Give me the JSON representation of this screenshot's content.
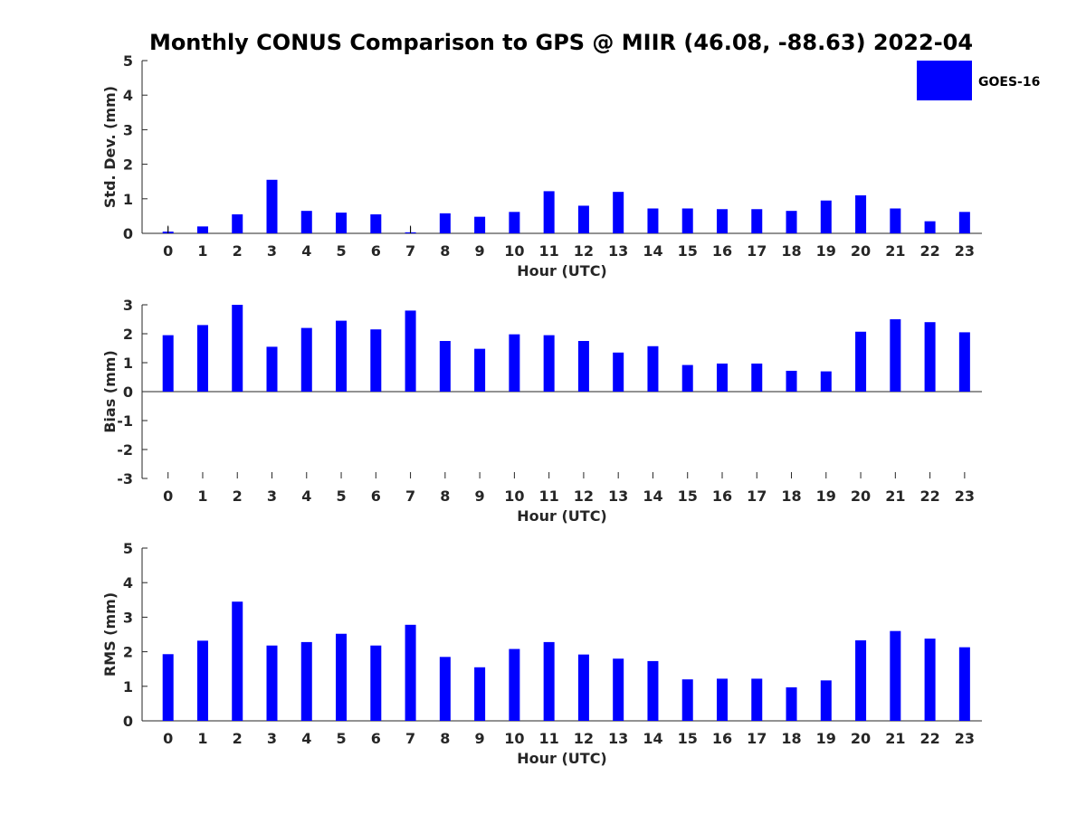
{
  "title": "Monthly CONUS Comparison to GPS @ MIIR (46.08, -88.63) 2022-04",
  "legend": {
    "label": "GOES-16",
    "color": "#0000ff"
  },
  "chart_data": [
    {
      "type": "bar",
      "name": "std-dev",
      "xlabel": "Hour (UTC)",
      "ylabel": "Std. Dev. (mm)",
      "ylim": [
        0,
        5
      ],
      "yticks": [
        0,
        1,
        2,
        3,
        4,
        5
      ],
      "categories": [
        0,
        1,
        2,
        3,
        4,
        5,
        6,
        7,
        8,
        9,
        10,
        11,
        12,
        13,
        14,
        15,
        16,
        17,
        18,
        19,
        20,
        21,
        22,
        23
      ],
      "series": [
        {
          "name": "GOES-16",
          "values": [
            0.05,
            0.2,
            0.55,
            1.55,
            0.65,
            0.6,
            0.55,
            0.03,
            0.58,
            0.48,
            0.62,
            1.22,
            0.8,
            1.2,
            0.72,
            0.72,
            0.7,
            0.7,
            0.65,
            0.95,
            1.1,
            0.72,
            0.35,
            0.62
          ]
        }
      ],
      "error_markers": [
        0,
        7
      ]
    },
    {
      "type": "bar",
      "name": "bias",
      "xlabel": "Hour (UTC)",
      "ylabel": "Bias (mm)",
      "ylim": [
        -3,
        3
      ],
      "yticks": [
        -3,
        -2,
        -1,
        0,
        1,
        2,
        3
      ],
      "categories": [
        0,
        1,
        2,
        3,
        4,
        5,
        6,
        7,
        8,
        9,
        10,
        11,
        12,
        13,
        14,
        15,
        16,
        17,
        18,
        19,
        20,
        21,
        22,
        23
      ],
      "series": [
        {
          "name": "GOES-16",
          "values": [
            1.95,
            2.3,
            3.0,
            1.55,
            2.2,
            2.45,
            2.15,
            2.8,
            1.75,
            1.48,
            1.98,
            1.95,
            1.75,
            1.35,
            1.57,
            0.92,
            0.97,
            0.97,
            0.72,
            0.7,
            2.07,
            2.5,
            2.4,
            2.05
          ]
        }
      ]
    },
    {
      "type": "bar",
      "name": "rms",
      "xlabel": "Hour (UTC)",
      "ylabel": "RMS (mm)",
      "ylim": [
        0,
        5
      ],
      "yticks": [
        0,
        1,
        2,
        3,
        4,
        5
      ],
      "categories": [
        0,
        1,
        2,
        3,
        4,
        5,
        6,
        7,
        8,
        9,
        10,
        11,
        12,
        13,
        14,
        15,
        16,
        17,
        18,
        19,
        20,
        21,
        22,
        23
      ],
      "series": [
        {
          "name": "GOES-16",
          "values": [
            1.93,
            2.32,
            3.45,
            2.18,
            2.28,
            2.52,
            2.18,
            2.78,
            1.85,
            1.55,
            2.08,
            2.28,
            1.92,
            1.8,
            1.73,
            1.2,
            1.22,
            1.22,
            0.97,
            1.17,
            2.33,
            2.6,
            2.38,
            2.13
          ]
        }
      ]
    }
  ]
}
